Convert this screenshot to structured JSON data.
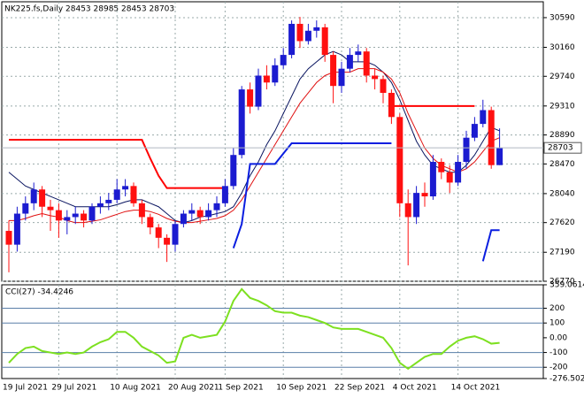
{
  "chart_data": [
    {
      "type": "candlestick",
      "title": "NK225.fs,Daily  28453 28985 28453 28703",
      "categories": [
        "19 Jul 2021",
        null,
        null,
        null,
        null,
        null,
        "29 Jul 2021",
        null,
        null,
        null,
        null,
        null,
        null,
        "10 Aug 2021",
        null,
        null,
        null,
        null,
        null,
        null,
        "20 Aug 2021",
        null,
        null,
        null,
        null,
        null,
        "1 Sep 2021",
        null,
        null,
        null,
        null,
        null,
        null,
        "10 Sep 2021",
        null,
        null,
        null,
        null,
        null,
        null,
        "22 Sep 2021",
        null,
        null,
        null,
        null,
        null,
        null,
        "4 Oct 2021",
        null,
        null,
        null,
        null,
        null,
        null,
        "14 Oct 2021",
        null,
        null,
        null,
        null,
        null
      ],
      "open": [
        27500,
        27300,
        27750,
        27900,
        28100,
        27850,
        27800,
        27650,
        27700,
        27750,
        27650,
        27850,
        27900,
        27950,
        28100,
        28150,
        27900,
        27700,
        27550,
        27400,
        27300,
        27600,
        27750,
        27800,
        27700,
        27800,
        27900,
        28150,
        28600,
        29550,
        29300,
        29750,
        29650,
        29900,
        30050,
        30500,
        30250,
        30400,
        30450,
        30050,
        29600,
        29850,
        30050,
        30100,
        29750,
        29700,
        29500,
        29150,
        27900,
        27700,
        28050,
        28000,
        28500,
        28350,
        28200,
        28500,
        28850,
        29050,
        29250,
        28453
      ],
      "high": [
        27650,
        27850,
        28000,
        28200,
        28150,
        27950,
        27900,
        27800,
        27850,
        27800,
        27900,
        28000,
        28050,
        28250,
        28250,
        28200,
        27950,
        27750,
        27600,
        27450,
        27650,
        27800,
        27900,
        27850,
        27900,
        28000,
        28250,
        28700,
        29600,
        29650,
        29850,
        29900,
        30000,
        30150,
        30550,
        30600,
        30500,
        30550,
        30500,
        30100,
        29950,
        30150,
        30200,
        30150,
        29850,
        29750,
        29550,
        29200,
        28100,
        28150,
        28200,
        28600,
        28550,
        28450,
        28600,
        28950,
        29150,
        29400,
        29300,
        28985
      ],
      "low": [
        26900,
        27200,
        27650,
        27800,
        27700,
        27500,
        27400,
        27450,
        27600,
        27550,
        27600,
        27750,
        27800,
        27900,
        28000,
        27850,
        27600,
        27450,
        27250,
        27050,
        27200,
        27550,
        27650,
        27600,
        27650,
        27700,
        27850,
        28100,
        28550,
        29200,
        29250,
        29550,
        29600,
        29850,
        30000,
        30150,
        30200,
        30300,
        29950,
        29350,
        29500,
        29800,
        29950,
        29650,
        29550,
        29350,
        29050,
        27700,
        27000,
        27600,
        27850,
        27950,
        28250,
        28050,
        28150,
        28400,
        28800,
        29000,
        28400,
        28453
      ],
      "close": [
        27300,
        27750,
        27900,
        28100,
        27850,
        27800,
        27650,
        27700,
        27750,
        27650,
        27850,
        27900,
        27950,
        28100,
        28150,
        27900,
        27700,
        27550,
        27400,
        27300,
        27600,
        27750,
        27800,
        27700,
        27800,
        27900,
        28150,
        28600,
        29550,
        29300,
        29750,
        29650,
        29900,
        30050,
        30500,
        30250,
        30400,
        30450,
        30050,
        29600,
        29850,
        30050,
        30100,
        29750,
        29700,
        29500,
        29150,
        27900,
        27700,
        28050,
        28000,
        28500,
        28350,
        28200,
        28500,
        28850,
        29050,
        29250,
        28453,
        28703
      ],
      "up_color": "#1b1bd0",
      "down_color": "#ff1010",
      "series": [
        {
          "color": "#0a1560",
          "values": [
            28350,
            28250,
            28150,
            28100,
            28050,
            28000,
            27950,
            27900,
            27850,
            27850,
            27850,
            27850,
            27850,
            27880,
            27920,
            27950,
            27950,
            27900,
            27850,
            27750,
            27650,
            27620,
            27650,
            27700,
            27720,
            27750,
            27780,
            27850,
            28050,
            28300,
            28500,
            28750,
            28950,
            29200,
            29450,
            29700,
            29850,
            29950,
            30050,
            30100,
            30050,
            29950,
            29950,
            29950,
            29900,
            29800,
            29650,
            29400,
            29100,
            28800,
            28600,
            28450,
            28400,
            28350,
            28350,
            28450,
            28600,
            28800,
            29000,
            28950
          ]
        },
        {
          "color": "#e01010",
          "values": [
            27650,
            27650,
            27680,
            27720,
            27750,
            27720,
            27700,
            27650,
            27620,
            27620,
            27640,
            27660,
            27700,
            27740,
            27780,
            27800,
            27800,
            27780,
            27740,
            27680,
            27640,
            27620,
            27620,
            27640,
            27660,
            27680,
            27720,
            27800,
            27950,
            28150,
            28350,
            28550,
            28750,
            28950,
            29150,
            29350,
            29500,
            29650,
            29750,
            29800,
            29800,
            29800,
            29850,
            29850,
            29850,
            29800,
            29700,
            29500,
            29200,
            28950,
            28700,
            28550,
            28450,
            28400,
            28350,
            28400,
            28500,
            28650,
            28800,
            28850
          ]
        },
        {
          "color": "#ff0000",
          "width": 2,
          "values": [
            28820,
            28820,
            28820,
            28820,
            28820,
            28820,
            28820,
            28820,
            28820,
            28820,
            28820,
            28820,
            28820,
            28820,
            28820,
            28820,
            28820,
            28550,
            28300,
            28120,
            28120,
            28120,
            28120,
            28120,
            28120,
            28120,
            28120,
            null,
            null,
            null,
            null,
            null,
            null,
            null,
            null,
            null,
            null,
            null,
            null,
            null,
            null,
            null,
            null,
            null,
            null,
            null,
            29310,
            29310,
            29310,
            29310,
            29310,
            29310,
            29310,
            29310,
            29310,
            29310,
            29310,
            null,
            null,
            null
          ]
        },
        {
          "color": "#0a1ee0",
          "width": 2,
          "values": [
            null,
            null,
            null,
            null,
            null,
            null,
            null,
            null,
            null,
            null,
            null,
            null,
            null,
            null,
            null,
            null,
            null,
            null,
            null,
            null,
            null,
            null,
            null,
            null,
            null,
            null,
            null,
            27250,
            27600,
            28470,
            28470,
            28470,
            28470,
            28620,
            28770,
            28770,
            28770,
            28770,
            28770,
            28770,
            28770,
            28770,
            28770,
            28770,
            28770,
            28770,
            28770,
            null,
            null,
            null,
            null,
            null,
            null,
            null,
            null,
            null,
            null,
            27060,
            27510,
            27510
          ]
        }
      ],
      "ylim": [
        26770,
        30820
      ],
      "yticks": [
        30590,
        30160,
        29740,
        29310,
        28890,
        28470,
        28040,
        27620,
        27190,
        26770
      ],
      "grid": true
    },
    {
      "type": "line",
      "title": "CCI(27) -34.4246",
      "values": [
        -170,
        -110,
        -70,
        -60,
        -90,
        -100,
        -110,
        -100,
        -110,
        -100,
        -60,
        -30,
        -10,
        40,
        40,
        0,
        -60,
        -90,
        -120,
        -170,
        -160,
        0,
        20,
        0,
        10,
        20,
        110,
        250,
        330,
        270,
        250,
        220,
        180,
        170,
        170,
        150,
        140,
        120,
        100,
        70,
        60,
        60,
        60,
        40,
        20,
        0,
        -70,
        -170,
        -210,
        -170,
        -130,
        -110,
        -110,
        -60,
        -20,
        0,
        10,
        -10,
        -40,
        -34.4246
      ],
      "color": "#7de020",
      "ylim": [
        -276.5023,
        359.0614
      ],
      "yticks": [
        359.0614,
        200,
        100,
        {
          "value": 0,
          "label": "0.00"
        },
        -100,
        -200,
        -276.5023
      ],
      "levels": [
        200,
        100,
        -100,
        -200
      ],
      "level_color": "#5a7fa8"
    }
  ]
}
